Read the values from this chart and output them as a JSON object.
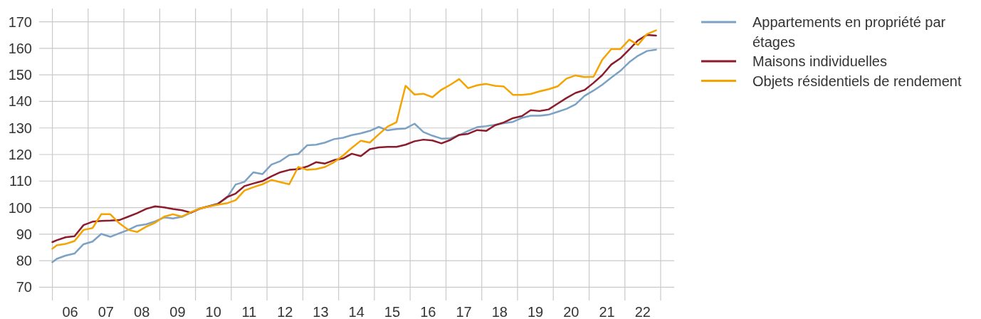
{
  "chart_data": {
    "type": "line",
    "x": [
      "2006-01-01",
      "2006-02-15",
      "2006-05-15",
      "2006-08-15",
      "2006-11-15",
      "2007-02-15",
      "2007-05-15",
      "2007-08-15",
      "2007-11-15",
      "2008-02-15",
      "2008-05-15",
      "2008-08-15",
      "2008-11-15",
      "2009-02-15",
      "2009-05-15",
      "2009-08-15",
      "2009-11-15",
      "2010-02-15",
      "2010-05-15",
      "2010-08-15",
      "2010-11-15",
      "2011-02-15",
      "2011-05-15",
      "2011-08-15",
      "2011-11-15",
      "2012-02-15",
      "2012-05-15",
      "2012-08-15",
      "2012-11-15",
      "2013-02-15",
      "2013-05-15",
      "2013-08-15",
      "2013-11-15",
      "2014-02-15",
      "2014-05-15",
      "2014-08-15",
      "2014-11-15",
      "2015-02-15",
      "2015-05-15",
      "2015-08-15",
      "2015-11-15",
      "2016-02-15",
      "2016-05-15",
      "2016-08-15",
      "2016-11-15",
      "2017-02-15",
      "2017-05-15",
      "2017-08-15",
      "2017-11-15",
      "2018-02-15",
      "2018-05-15",
      "2018-08-15",
      "2018-11-15",
      "2019-02-15",
      "2019-05-15",
      "2019-08-15",
      "2019-11-15",
      "2020-02-15",
      "2020-05-15",
      "2020-08-15",
      "2020-11-15",
      "2021-02-15",
      "2021-05-15",
      "2021-08-15",
      "2021-11-15",
      "2022-02-15",
      "2022-05-15",
      "2022-08-15",
      "2022-11-15"
    ],
    "series": [
      {
        "name": "Appartements en propriété par étages",
        "color": "#7ba1c5",
        "values": [
          79.4,
          80.7,
          81.9,
          82.7,
          86.2,
          87.2,
          90.1,
          89.0,
          90.3,
          91.6,
          93.2,
          93.7,
          94.8,
          96.3,
          95.9,
          96.5,
          98.1,
          99.7,
          100.5,
          101.5,
          103.6,
          108.7,
          109.7,
          113.3,
          112.6,
          116.2,
          117.5,
          119.8,
          120.2,
          123.5,
          123.7,
          124.5,
          125.8,
          126.3,
          127.3,
          128.0,
          128.9,
          130.4,
          129.1,
          129.6,
          129.8,
          131.6,
          128.5,
          127.1,
          126.0,
          126.1,
          127.3,
          128.9,
          130.3,
          130.7,
          131.2,
          131.8,
          132.3,
          133.8,
          134.6,
          134.6,
          135.0,
          136.1,
          137.2,
          138.9,
          142.1,
          144.1,
          146.3,
          149.0,
          151.5,
          154.8,
          157.2,
          159.0,
          159.5
        ]
      },
      {
        "name": "Maisons individuelles",
        "color": "#8c1c2c",
        "values": [
          87.0,
          87.7,
          88.8,
          89.2,
          93.4,
          94.7,
          95.0,
          95.1,
          95.3,
          96.6,
          97.9,
          99.5,
          100.5,
          100.1,
          99.5,
          99.0,
          98.1,
          99.6,
          100.5,
          101.3,
          103.9,
          105.3,
          108.1,
          109.1,
          110.0,
          111.8,
          113.3,
          114.2,
          114.5,
          115.5,
          117.1,
          116.6,
          117.9,
          118.5,
          120.3,
          119.4,
          122.0,
          122.7,
          122.9,
          122.9,
          123.7,
          125.0,
          125.6,
          125.3,
          124.2,
          125.5,
          127.4,
          127.8,
          129.2,
          128.9,
          131.0,
          132.1,
          133.7,
          134.5,
          136.7,
          136.4,
          137.0,
          139.2,
          141.3,
          143.2,
          144.3,
          147.0,
          149.9,
          153.9,
          156.2,
          159.6,
          163.0,
          165.1,
          164.8
        ]
      },
      {
        "name": "Objets résidentiels de rendement",
        "color": "#f5a300",
        "values": [
          84.5,
          85.8,
          86.3,
          87.4,
          91.6,
          92.3,
          97.5,
          97.5,
          94.1,
          91.6,
          90.8,
          92.8,
          94.3,
          96.6,
          97.5,
          96.6,
          98.3,
          99.6,
          100.4,
          101.1,
          101.6,
          102.8,
          106.4,
          107.7,
          108.8,
          110.4,
          109.6,
          108.8,
          115.3,
          114.2,
          114.5,
          115.3,
          117.1,
          119.6,
          122.5,
          125.2,
          124.5,
          127.6,
          130.5,
          132.2,
          145.9,
          142.6,
          142.9,
          141.6,
          144.4,
          146.3,
          148.4,
          145.0,
          146.1,
          146.6,
          145.9,
          145.6,
          142.5,
          142.5,
          142.8,
          143.8,
          144.6,
          145.7,
          148.6,
          149.8,
          149.2,
          149.3,
          155.7,
          159.7,
          159.7,
          163.3,
          161.3,
          165.4,
          166.8
        ]
      }
    ],
    "xlim": [
      "2005-08-19",
      "2023-05-19"
    ],
    "ylim": [
      65,
      175
    ],
    "xticks": [
      {
        "value": "2006",
        "label": null
      },
      {
        "value": "2006-07-02",
        "label": "06"
      },
      {
        "value": "2007",
        "label": null
      },
      {
        "value": "2007-07-02",
        "label": "07"
      },
      {
        "value": "2008",
        "label": null
      },
      {
        "value": "2008-07-02",
        "label": "08"
      },
      {
        "value": "2009",
        "label": null
      },
      {
        "value": "2009-07-02",
        "label": "09"
      },
      {
        "value": "2010",
        "label": null
      },
      {
        "value": "2010-07-02",
        "label": "10"
      },
      {
        "value": "2011",
        "label": null
      },
      {
        "value": "2011-07-02",
        "label": "11"
      },
      {
        "value": "2012",
        "label": null
      },
      {
        "value": "2012-07-02",
        "label": "12"
      },
      {
        "value": "2013",
        "label": null
      },
      {
        "value": "2013-07-02",
        "label": "13"
      },
      {
        "value": "2014",
        "label": null
      },
      {
        "value": "2014-07-02",
        "label": "14"
      },
      {
        "value": "2015",
        "label": null
      },
      {
        "value": "2015-07-02",
        "label": "15"
      },
      {
        "value": "2016",
        "label": null
      },
      {
        "value": "2016-07-02",
        "label": "16"
      },
      {
        "value": "2017",
        "label": null
      },
      {
        "value": "2017-07-02",
        "label": "17"
      },
      {
        "value": "2018",
        "label": null
      },
      {
        "value": "2018-07-02",
        "label": "18"
      },
      {
        "value": "2019",
        "label": null
      },
      {
        "value": "2019-07-02",
        "label": "19"
      },
      {
        "value": "2020",
        "label": null
      },
      {
        "value": "2020-07-02",
        "label": "20"
      },
      {
        "value": "2021",
        "label": null
      },
      {
        "value": "2021-07-02",
        "label": "21"
      },
      {
        "value": "2022",
        "label": null
      },
      {
        "value": "2022-07-02",
        "label": "22"
      },
      {
        "value": "2023",
        "label": null
      }
    ],
    "yticks": [
      70,
      80,
      90,
      100,
      110,
      120,
      130,
      140,
      150,
      160,
      170
    ],
    "grid": true,
    "legend": "top right"
  }
}
